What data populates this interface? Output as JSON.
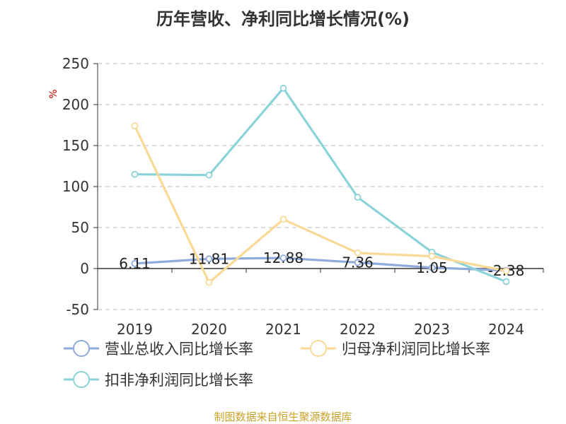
{
  "chart_data": {
    "type": "line",
    "title": "历年营收、净利同比增长情况(%)",
    "ylabel": "%",
    "source": "制图数据来自恒生聚源数据库",
    "categories": [
      "2019",
      "2020",
      "2021",
      "2022",
      "2023",
      "2024"
    ],
    "ylim": [
      -50,
      250
    ],
    "yticks": [
      -50,
      0,
      50,
      100,
      150,
      200,
      250
    ],
    "ytick_labels": [
      "-50",
      "0",
      "50",
      "100",
      "150",
      "200",
      "250"
    ],
    "grid": true,
    "legend_position": "bottom",
    "series": [
      {
        "name": "营业总收入同比增长率",
        "color": "#8faadc",
        "values": [
          6.11,
          11.81,
          12.88,
          7.36,
          1.05,
          -2.38
        ],
        "labels": [
          "6.11",
          "11.81",
          "12.88",
          "7.36",
          "1.05",
          "-2.38"
        ]
      },
      {
        "name": "归母净利润同比增长率",
        "color": "#fad996",
        "values": [
          174,
          -17,
          60,
          19,
          15,
          -3
        ]
      },
      {
        "name": "扣非净利润同比增长率",
        "color": "#8ad3d8",
        "values": [
          115,
          114,
          220,
          87,
          20,
          -16
        ]
      }
    ]
  }
}
